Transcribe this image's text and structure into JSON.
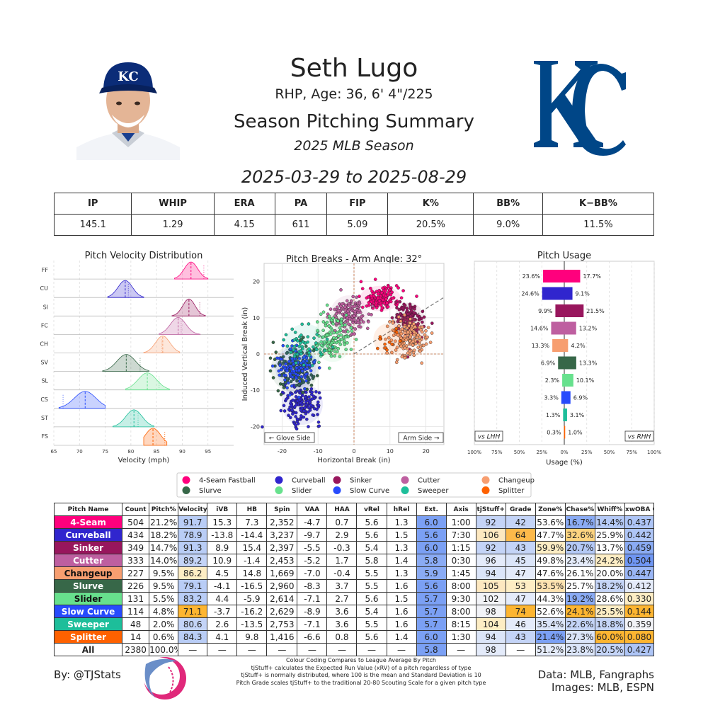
{
  "header": {
    "name": "Seth Lugo",
    "info": "RHP, Age: 36, 6' 4\"/225",
    "title": "Season Pitching Summary",
    "season": "2025 MLB Season",
    "date_range": "2025-03-29 to 2025-08-29"
  },
  "season_stats": {
    "headers": [
      "IP",
      "WHIP",
      "ERA",
      "PA",
      "FIP",
      "K%",
      "BB%",
      "K−BB%"
    ],
    "values": [
      "145.1",
      "1.29",
      "4.15",
      "611",
      "5.09",
      "20.5%",
      "9.0%",
      "11.5%"
    ]
  },
  "colors": {
    "FF": "#ff007d",
    "CU": "#3025ce",
    "SI": "#98165d",
    "FC": "#be5fa0",
    "CH": "#f79e70",
    "SV": "#376748",
    "SL": "#67e18d",
    "CS": "#274bfc",
    "ST": "#1dbe9a",
    "FS": "#fe6100",
    "team_blue": "#004687"
  },
  "chart_data": [
    {
      "type": "area",
      "title": "Pitch Velocity Distribution",
      "xlabel": "Velocity (mph)",
      "x_ticks": [
        "65",
        "70",
        "75",
        "80",
        "85",
        "90",
        "95"
      ],
      "xlim": [
        65,
        100
      ],
      "series": [
        {
          "name": "FF",
          "mean": 91.7,
          "sd": 1.3,
          "lo": 88.5,
          "hi": 95,
          "lg": 94.2
        },
        {
          "name": "CU",
          "mean": 78.9,
          "sd": 1.4,
          "lo": 75.5,
          "hi": 82.5,
          "lg": 79.5
        },
        {
          "name": "SI",
          "mean": 91.3,
          "sd": 1.2,
          "lo": 88.0,
          "hi": 94.5,
          "lg": 93.4
        },
        {
          "name": "FC",
          "mean": 89.2,
          "sd": 1.5,
          "lo": 85.5,
          "hi": 93.5,
          "lg": 89.8
        },
        {
          "name": "CH",
          "mean": 86.2,
          "sd": 1.4,
          "lo": 82.5,
          "hi": 89.5,
          "lg": 86.0
        },
        {
          "name": "SV",
          "mean": 79.1,
          "sd": 1.8,
          "lo": 74.5,
          "hi": 83.5,
          "lg": 81.8
        },
        {
          "name": "SL",
          "mean": 83.2,
          "sd": 1.8,
          "lo": 79.0,
          "hi": 87.5,
          "lg": 85.5
        },
        {
          "name": "CS",
          "mean": 71.1,
          "sd": 2.1,
          "lo": 66.0,
          "hi": 75.0,
          "lg": 66.8
        },
        {
          "name": "ST",
          "mean": 80.6,
          "sd": 1.6,
          "lo": 76.5,
          "hi": 84.5,
          "lg": 81.4
        },
        {
          "name": "FS",
          "mean": 84.3,
          "sd": 1.5,
          "lo": 82.5,
          "hi": 87.0,
          "lg": 86.6
        }
      ]
    },
    {
      "type": "scatter",
      "title": "Pitch Breaks - Arm Angle: 32°",
      "xlabel": "Horizontal Break (in)",
      "ylabel": "Induced Vertical Break (in)",
      "xlim": [
        -25,
        25
      ],
      "ylim": [
        -25,
        25
      ],
      "x_ticks": [
        "-20",
        "-10",
        "0",
        "10",
        "20"
      ],
      "y_ticks": [
        "20",
        "10",
        "0",
        "-10",
        "-20"
      ],
      "arm_angle_deg": 32,
      "left_label": "← Glove Side",
      "right_label": "Arm Side →",
      "series": [
        {
          "name": "FF",
          "hb": 7.3,
          "ivb": 15.3,
          "n": 504
        },
        {
          "name": "CU",
          "hb": -14.4,
          "ivb": -13.8,
          "n": 434
        },
        {
          "name": "SI",
          "hb": 15.4,
          "ivb": 8.9,
          "n": 349
        },
        {
          "name": "FC",
          "hb": -1.4,
          "ivb": 10.9,
          "n": 333
        },
        {
          "name": "CH",
          "hb": 14.8,
          "ivb": 4.5,
          "n": 227
        },
        {
          "name": "SV",
          "hb": -16.5,
          "ivb": -4.1,
          "n": 226
        },
        {
          "name": "SL",
          "hb": -5.9,
          "ivb": 4.4,
          "n": 131
        },
        {
          "name": "CS",
          "hb": -16.2,
          "ivb": -3.7,
          "n": 114
        },
        {
          "name": "ST",
          "hb": -13.5,
          "ivb": 2.6,
          "n": 48
        },
        {
          "name": "FS",
          "hb": 9.8,
          "ivb": 4.1,
          "n": 14
        }
      ]
    },
    {
      "type": "bar",
      "title": "Pitch Usage",
      "xlabel": "Usage (%)",
      "x_ticks": [
        "100%",
        "75%",
        "50%",
        "25%",
        "0%",
        "25%",
        "50%",
        "75%",
        "100%"
      ],
      "left_tag": "vs LHH",
      "right_tag": "vs RHH",
      "series": [
        {
          "name": "FF",
          "lhh": "23.6%",
          "rhh": "17.7%",
          "lhh_v": 23.6,
          "rhh_v": 17.7
        },
        {
          "name": "CU",
          "lhh": "24.6%",
          "rhh": "9.1%",
          "lhh_v": 24.6,
          "rhh_v": 9.1
        },
        {
          "name": "SI",
          "lhh": "9.9%",
          "rhh": "21.5%",
          "lhh_v": 9.9,
          "rhh_v": 21.5
        },
        {
          "name": "FC",
          "lhh": "14.6%",
          "rhh": "13.2%",
          "lhh_v": 14.6,
          "rhh_v": 13.2
        },
        {
          "name": "CH",
          "lhh": "13.3%",
          "rhh": "4.2%",
          "lhh_v": 13.3,
          "rhh_v": 4.2
        },
        {
          "name": "SV",
          "lhh": "6.9%",
          "rhh": "13.3%",
          "lhh_v": 6.9,
          "rhh_v": 13.3
        },
        {
          "name": "SL",
          "lhh": "2.3%",
          "rhh": "10.1%",
          "lhh_v": 2.3,
          "rhh_v": 10.1
        },
        {
          "name": "CS",
          "lhh": "3.3%",
          "rhh": "6.9%",
          "lhh_v": 3.3,
          "rhh_v": 6.9
        },
        {
          "name": "ST",
          "lhh": "1.3%",
          "rhh": "3.1%",
          "lhh_v": 1.3,
          "rhh_v": 3.1
        },
        {
          "name": "FS",
          "lhh": "0.3%",
          "rhh": "1.0%",
          "lhh_v": 0.3,
          "rhh_v": 1.0
        }
      ]
    },
    {
      "type": "table",
      "columns": [
        "Pitch Name",
        "Count",
        "Pitch%",
        "Velocity",
        "iVB",
        "HB",
        "Spin",
        "VAA",
        "HAA",
        "vRel",
        "hRel",
        "Ext.",
        "Axis",
        "tjStuff+",
        "Grade",
        "Zone%",
        "Chase%",
        "Whiff%",
        "xwOBA Contact"
      ],
      "rows": [
        {
          "code": "FF",
          "cells": [
            "4-Seam",
            "504",
            "21.2%",
            "91.7",
            "15.3",
            "7.3",
            "2,352",
            "-4.7",
            "0.7",
            "5.6",
            "1.3",
            "6.0",
            "1:00",
            "92",
            "42",
            "53.6%",
            "16.7%",
            "14.4%",
            "0.437"
          ],
          "bg": [
            "",
            "",
            "",
            "#b9cdf6",
            "",
            "",
            "",
            "",
            "",
            "",
            "",
            "#7ba0f4",
            "",
            "#c4d4f7",
            "#c4d4f7",
            "",
            "#8aabf4",
            "#b4c9f6",
            "#aec5f6"
          ]
        },
        {
          "code": "CU",
          "cells": [
            "Curveball",
            "434",
            "18.2%",
            "78.9",
            "-13.8",
            "-14.4",
            "3,237",
            "-9.7",
            "2.9",
            "5.6",
            "1.5",
            "5.6",
            "7:30",
            "106",
            "64",
            "47.7%",
            "32.6%",
            "25.9%",
            "0.442"
          ],
          "bg": [
            "",
            "",
            "",
            "#b9cdf6",
            "",
            "",
            "",
            "",
            "",
            "",
            "",
            "#7ba0f4",
            "",
            "#fde8c0",
            "#fdb94a",
            "",
            "#fdd480",
            "",
            "#aec5f6"
          ]
        },
        {
          "code": "SI",
          "cells": [
            "Sinker",
            "349",
            "14.7%",
            "91.3",
            "8.9",
            "15.4",
            "2,397",
            "-5.5",
            "-0.3",
            "5.4",
            "1.3",
            "6.0",
            "1:15",
            "92",
            "43",
            "59.9%",
            "20.7%",
            "13.7%",
            "0.459"
          ],
          "bg": [
            "",
            "",
            "",
            "#b9cdf6",
            "",
            "",
            "",
            "",
            "",
            "",
            "",
            "#7ba0f4",
            "",
            "#c4d4f7",
            "#c4d4f7",
            "#fdedc4",
            "#b4c9f6",
            "",
            "#8aabf4"
          ]
        },
        {
          "code": "FC",
          "cells": [
            "Cutter",
            "333",
            "14.0%",
            "89.2",
            "10.9",
            "-1.4",
            "2,453",
            "-5.2",
            "1.7",
            "5.8",
            "1.4",
            "5.8",
            "0:30",
            "96",
            "45",
            "49.8%",
            "23.4%",
            "24.2%",
            "0.504"
          ],
          "bg": [
            "",
            "",
            "",
            "#c4d4f7",
            "",
            "",
            "",
            "",
            "",
            "",
            "",
            "#8aabf4",
            "",
            "#e4ebfa",
            "#dbe5f9",
            "",
            "#e4ebfa",
            "#fdedc4",
            "#6f96f3"
          ]
        },
        {
          "code": "CH",
          "cells": [
            "Changeup",
            "227",
            "9.5%",
            "86.2",
            "4.5",
            "14.8",
            "1,669",
            "-7.0",
            "-0.4",
            "5.5",
            "1.3",
            "5.9",
            "1:45",
            "94",
            "47",
            "47.6%",
            "26.1%",
            "20.0%",
            "0.447"
          ],
          "bg": [
            "",
            "",
            "",
            "#fdedc4",
            "",
            "",
            "",
            "",
            "",
            "",
            "",
            "#8aabf4",
            "",
            "#dbe5f9",
            "#e4ebfa",
            "",
            "",
            "",
            "#9ab6f5"
          ]
        },
        {
          "code": "SV",
          "cells": [
            "Slurve",
            "226",
            "9.5%",
            "79.1",
            "-4.1",
            "-16.5",
            "2,960",
            "-8.3",
            "3.7",
            "5.5",
            "1.6",
            "5.6",
            "8:00",
            "105",
            "53",
            "53.5%",
            "25.7%",
            "18.2%",
            "0.412"
          ],
          "bg": [
            "",
            "",
            "",
            "#b9cdf6",
            "",
            "",
            "",
            "",
            "",
            "",
            "",
            "#7ba0f4",
            "",
            "#fde8c0",
            "#fdedc4",
            "#fde2b0",
            "",
            "#c4d4f7",
            "#e4ebfa"
          ]
        },
        {
          "code": "SL",
          "cells": [
            "Slider",
            "131",
            "5.5%",
            "83.2",
            "4.4",
            "-5.9",
            "2,614",
            "-7.1",
            "2.7",
            "5.6",
            "1.5",
            "5.7",
            "9:30",
            "102",
            "47",
            "44.3%",
            "19.2%",
            "28.6%",
            "0.330"
          ],
          "bg": [
            "",
            "",
            "",
            "#b9cdf6",
            "",
            "",
            "",
            "",
            "",
            "",
            "",
            "#7ba0f4",
            "",
            "#f2f3f7",
            "#e4ebfa",
            "",
            "#8aabf4",
            "",
            "#fdedc4"
          ]
        },
        {
          "code": "CS",
          "cells": [
            "Slow Curve",
            "114",
            "4.8%",
            "71.1",
            "-3.7",
            "-16.2",
            "2,629",
            "-8.9",
            "3.6",
            "5.4",
            "1.6",
            "5.7",
            "8:00",
            "98",
            "74",
            "52.6%",
            "24.1%",
            "25.5%",
            "0.144"
          ],
          "bg": [
            "",
            "",
            "",
            "#fdb531",
            "",
            "",
            "",
            "",
            "",
            "",
            "",
            "#7ba0f4",
            "",
            "#f2f3f7",
            "#fdb531",
            "",
            "#fdb531",
            "#fdedc4",
            "#fdb531"
          ]
        },
        {
          "code": "ST",
          "cells": [
            "Sweeper",
            "48",
            "2.0%",
            "80.6",
            "2.6",
            "-13.5",
            "2,753",
            "-7.1",
            "3.6",
            "5.5",
            "1.6",
            "5.7",
            "8:15",
            "104",
            "46",
            "35.4%",
            "22.6%",
            "18.8%",
            "0.359"
          ],
          "bg": [
            "",
            "",
            "",
            "#c4d4f7",
            "",
            "",
            "",
            "",
            "",
            "",
            "",
            "#7ba0f4",
            "",
            "#fdedc4",
            "#e4ebfa",
            "#dbe5f9",
            "#c4d4f7",
            "#c4d4f7",
            "#f2f3f7"
          ]
        },
        {
          "code": "FS",
          "cells": [
            "Splitter",
            "14",
            "0.6%",
            "84.3",
            "4.1",
            "9.8",
            "1,416",
            "-6.6",
            "0.8",
            "5.6",
            "1.4",
            "6.0",
            "1:30",
            "94",
            "43",
            "21.4%",
            "27.3%",
            "60.0%",
            "0.080"
          ],
          "bg": [
            "",
            "",
            "",
            "#b9cdf6",
            "",
            "",
            "",
            "",
            "",
            "",
            "",
            "#7ba0f4",
            "",
            "#dbe5f9",
            "#c4d4f7",
            "#7ba0f4",
            "#dbe5f9",
            "#fdb531",
            "#fdb531"
          ]
        },
        {
          "code": "ALL",
          "cells": [
            "All",
            "2380",
            "100.0%",
            "—",
            "—",
            "—",
            "—",
            "—",
            "—",
            "—",
            "—",
            "5.8",
            "—",
            "98",
            "—",
            "51.2%",
            "23.8%",
            "20.5%",
            "0.427"
          ],
          "bg": [
            "",
            "",
            "",
            "",
            "",
            "",
            "",
            "",
            "",
            "",
            "",
            "#7ba0f4",
            "",
            "#e4ebfa",
            "",
            "#e4ebfa",
            "#dbe5f9",
            "#c4d4f7",
            "#aec5f6"
          ]
        }
      ]
    }
  ],
  "legend": [
    {
      "code": "FF",
      "label": "4-Seam Fastball"
    },
    {
      "code": "CU",
      "label": "Curveball"
    },
    {
      "code": "SI",
      "label": "Sinker"
    },
    {
      "code": "FC",
      "label": "Cutter"
    },
    {
      "code": "CH",
      "label": "Changeup"
    },
    {
      "code": "SV",
      "label": "Slurve"
    },
    {
      "code": "SL",
      "label": "Slider"
    },
    {
      "code": "CS",
      "label": "Slow Curve"
    },
    {
      "code": "ST",
      "label": "Sweeper"
    },
    {
      "code": "FS",
      "label": "Splitter"
    }
  ],
  "footer": {
    "byline": "By: @TJStats",
    "notes": [
      "Colour Coding Compares to League Average By Pitch",
      "tjStuff+ calculates the Expected Run Value (xRV) of a pitch regardless of type",
      "tjStuff+ is normally distributed, where 100 is the mean and Standard Deviation is 10",
      "Pitch Grade scales tjStuff+ to the traditional 20-80 Scouting Scale for a given pitch type"
    ],
    "source_line1": "Data: MLB, Fangraphs",
    "source_line2": "Images: MLB, ESPN"
  }
}
